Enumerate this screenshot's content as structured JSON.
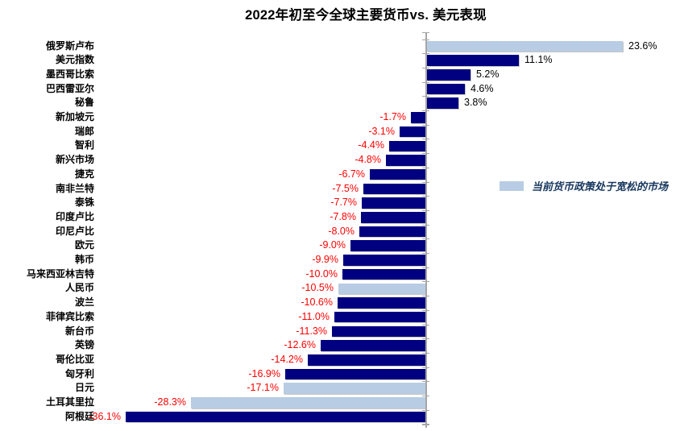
{
  "title": "2022年初至今全球主要货币vs. 美元表现",
  "legend": {
    "label": "当前货币政策处于宽松的市场",
    "swatch_color": "#b8cce4"
  },
  "colors": {
    "bar_default": "#000080",
    "bar_loose_policy": "#b8cce4",
    "negative_value": "#ff0000",
    "positive_value": "#000000",
    "axis": "#a6a6a6",
    "legend_text": "#17375e",
    "title_text": "#000000"
  },
  "chart_data": {
    "type": "bar",
    "orientation": "horizontal",
    "title": "2022年初至今全球主要货币vs. 美元表现",
    "unit": "%",
    "xlabel": "",
    "ylabel": "",
    "grid": false,
    "legend_position": "middle-right",
    "xlim": [
      -40,
      28
    ],
    "categories": [
      "俄罗斯卢布",
      "美元指数",
      "墨西哥比索",
      "巴西雷亚尔",
      "秘鲁",
      "新加坡元",
      "瑞郎",
      "智利",
      "新兴市场",
      "捷克",
      "南非兰特",
      "泰铢",
      "印度卢比",
      "印尼卢比",
      "欧元",
      "韩币",
      "马来西亚林吉特",
      "人民币",
      "波兰",
      "菲律宾比索",
      "新台币",
      "英镑",
      "哥伦比亚",
      "匈牙利",
      "日元",
      "土耳其里拉",
      "阿根廷"
    ],
    "values": [
      23.6,
      11.1,
      5.2,
      4.6,
      3.8,
      -1.7,
      -3.1,
      -4.4,
      -4.8,
      -6.7,
      -7.5,
      -7.7,
      -7.8,
      -8.0,
      -9.0,
      -9.9,
      -10.0,
      -10.5,
      -10.6,
      -11.0,
      -11.3,
      -12.6,
      -14.2,
      -16.9,
      -17.1,
      -28.3,
      -36.1
    ],
    "value_labels": [
      "23.6%",
      "11.1%",
      "5.2%",
      "4.6%",
      "3.8%",
      "-1.7%",
      "-3.1%",
      "-4.4%",
      "-4.8%",
      "-6.7%",
      "-7.5%",
      "-7.7%",
      "-7.8%",
      "-8.0%",
      "-9.0%",
      "-9.9%",
      "-10.0%",
      "-10.5%",
      "-10.6%",
      "-11.0%",
      "-11.3%",
      "-12.6%",
      "-14.2%",
      "-16.9%",
      "-17.1%",
      "-28.3%",
      "-36.1%"
    ],
    "loose_policy_indices": [
      0,
      17,
      24,
      25
    ],
    "legend": [
      {
        "label": "当前货币政策处于宽松的市场",
        "color": "#b8cce4"
      }
    ]
  }
}
